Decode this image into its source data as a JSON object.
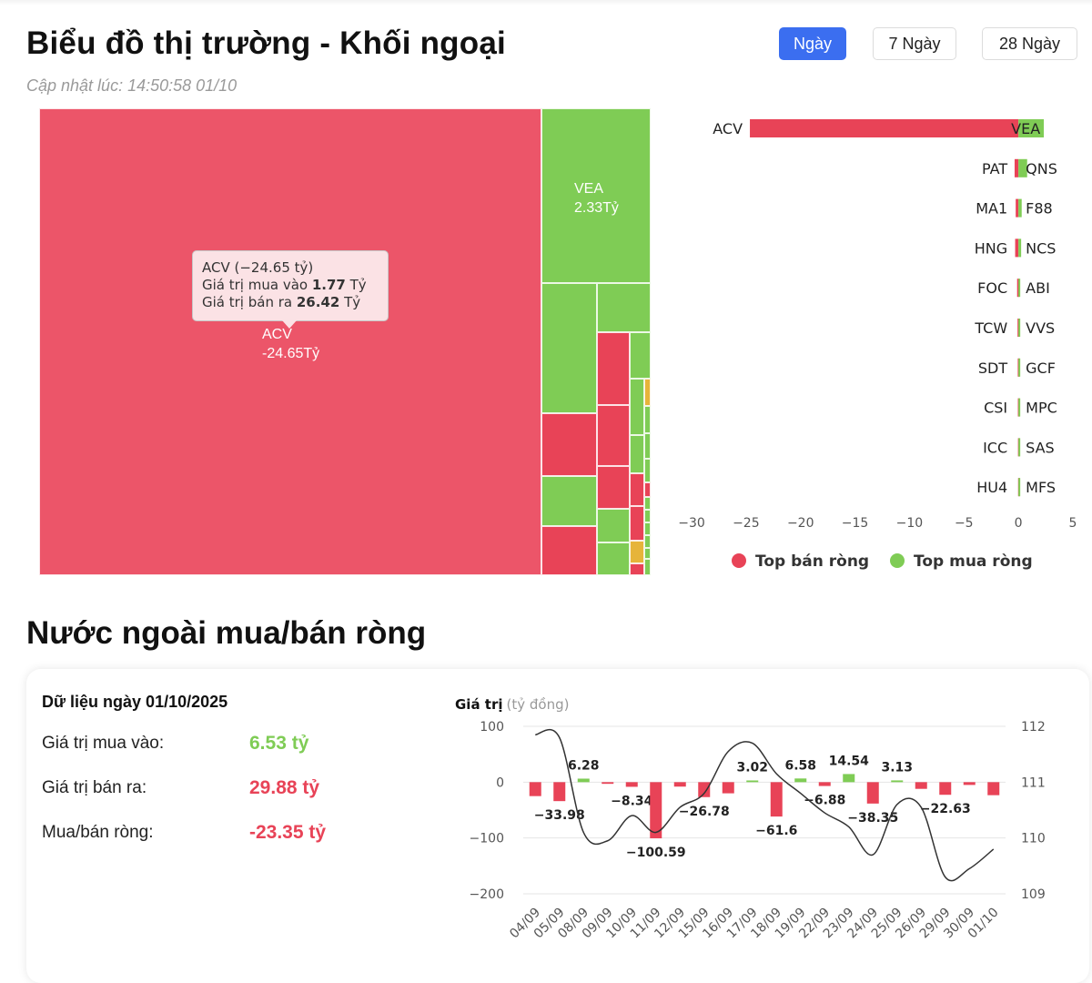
{
  "header": {
    "title": "Biểu đồ thị trường - Khối ngoại",
    "updated": "Cập nhật lúc: 14:50:58 01/10",
    "tabs": [
      {
        "label": "Ngày",
        "active": true
      },
      {
        "label": "7 Ngày",
        "active": false
      },
      {
        "label": "28 Ngày",
        "active": false
      }
    ]
  },
  "colors": {
    "sell": "#e84357",
    "sell_big": "#ec5569",
    "buy": "#7fcc55",
    "neutral": "#e6b43a",
    "accent": "#3b6ef0"
  },
  "treemap": {
    "cells": [
      {
        "label": "ACV",
        "value": "-24.65Tỷ"
      },
      {
        "label": "VEA",
        "value": "2.33Tỷ"
      }
    ],
    "tooltip": {
      "title": "ACV (−24.65 tỷ)",
      "buy_label": "Giá trị mua vào",
      "buy_value": "1.77",
      "sell_label": "Giá trị bán ra",
      "sell_value": "26.42",
      "unit": "Tỷ"
    }
  },
  "chart_data": [
    {
      "type": "bar",
      "orientation": "horizontal",
      "xlim": [
        -30,
        5
      ],
      "xticks": [
        -30,
        -25,
        -20,
        -15,
        -10,
        -5,
        0,
        5
      ],
      "legend": [
        "Top bán ròng",
        "Top mua ròng"
      ],
      "legend_position": "bottom",
      "rows": [
        {
          "sell": "ACV",
          "sell_value": -24.65,
          "buy": "VEA",
          "buy_value": 2.33
        },
        {
          "sell": "PAT",
          "sell_value": -0.35,
          "buy": "QNS",
          "buy_value": 0.8
        },
        {
          "sell": "MA1",
          "sell_value": -0.25,
          "buy": "F88",
          "buy_value": 0.3
        },
        {
          "sell": "HNG",
          "sell_value": -0.3,
          "buy": "NCS",
          "buy_value": 0.25
        },
        {
          "sell": "FOC",
          "sell_value": -0.12,
          "buy": "ABI",
          "buy_value": 0.1
        },
        {
          "sell": "TCW",
          "sell_value": -0.08,
          "buy": "VVS",
          "buy_value": 0.08
        },
        {
          "sell": "SDT",
          "sell_value": -0.06,
          "buy": "GCF",
          "buy_value": 0.06
        },
        {
          "sell": "CSI",
          "sell_value": -0.05,
          "buy": "MPC",
          "buy_value": 0.05
        },
        {
          "sell": "ICC",
          "sell_value": -0.04,
          "buy": "SAS",
          "buy_value": 0.04
        },
        {
          "sell": "HU4",
          "sell_value": -0.03,
          "buy": "MFS",
          "buy_value": 0.03
        }
      ]
    },
    {
      "type": "bar",
      "title": "Giá trị",
      "title_unit": "(tỷ đồng)",
      "ylim": [
        -200,
        100
      ],
      "yticks": [
        100,
        0,
        -100,
        -200
      ],
      "y2lim": [
        109,
        112
      ],
      "y2ticks": [
        112,
        111,
        110,
        109
      ],
      "categories": [
        "04/09",
        "05/09",
        "08/09",
        "09/09",
        "10/09",
        "11/09",
        "12/09",
        "15/09",
        "16/09",
        "17/09",
        "18/09",
        "19/09",
        "22/09",
        "23/09",
        "24/09",
        "25/09",
        "26/09",
        "29/09",
        "30/09",
        "01/10"
      ],
      "values": [
        -25,
        -33.98,
        6.28,
        -3,
        -8.34,
        -100.59,
        -8,
        -26.78,
        -20,
        3.02,
        -61.6,
        6.58,
        -6.88,
        14.54,
        -38.35,
        3.13,
        -12,
        -22.63,
        -5,
        -23.35
      ],
      "value_labels": [
        "",
        "-33.98",
        "6.28",
        "",
        "-8.34",
        "-100.59",
        "",
        "-26.78",
        "",
        "3.02",
        "-61.6",
        "6.58",
        "-6.88",
        "14.54",
        "-38.35",
        "3.13",
        "",
        "-22.63",
        "",
        ""
      ],
      "line": [
        111.85,
        111.8,
        110.1,
        109.95,
        110.4,
        110.1,
        110.55,
        110.8,
        111.55,
        111.7,
        111.15,
        110.8,
        110.45,
        110.2,
        109.7,
        110.6,
        110.55,
        109.3,
        109.45,
        109.8
      ]
    }
  ],
  "net": {
    "section_title": "Nước ngoài mua/bán ròng",
    "date_label": "Dữ liệu ngày 01/10/2025",
    "buy_label": "Giá trị mua vào:",
    "buy_value": "6.53 tỷ",
    "sell_label": "Giá trị bán ra:",
    "sell_value": "29.88 tỷ",
    "net_label": "Mua/bán ròng:",
    "net_value": "-23.35 tỷ"
  }
}
